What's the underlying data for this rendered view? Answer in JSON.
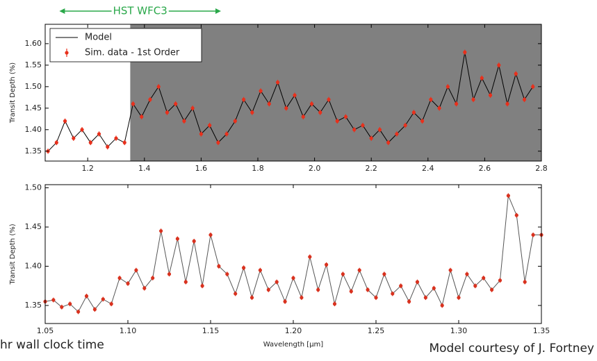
{
  "chart_data": [
    {
      "type": "line",
      "ylabel": "Transit Depth (%)",
      "annotation": {
        "text": "HST WFC3",
        "x_range": [
          1.1,
          1.67
        ],
        "color": "#2aa84a"
      },
      "shade": {
        "x_range": [
          1.35,
          2.8
        ],
        "color": "#808080"
      },
      "legend": "upper left",
      "x": [
        1.06,
        1.09,
        1.12,
        1.15,
        1.18,
        1.21,
        1.24,
        1.27,
        1.3,
        1.33,
        1.36,
        1.39,
        1.42,
        1.45,
        1.48,
        1.51,
        1.54,
        1.57,
        1.6,
        1.63,
        1.66,
        1.69,
        1.72,
        1.75,
        1.78,
        1.81,
        1.84,
        1.87,
        1.9,
        1.93,
        1.96,
        1.99,
        2.02,
        2.05,
        2.08,
        2.11,
        2.14,
        2.17,
        2.2,
        2.23,
        2.26,
        2.29,
        2.32,
        2.35,
        2.38,
        2.41,
        2.44,
        2.47,
        2.5,
        2.53,
        2.56,
        2.59,
        2.62,
        2.65,
        2.68,
        2.71,
        2.74,
        2.77
      ],
      "series": [
        {
          "name": "Model",
          "color": "#000000",
          "values": [
            1.35,
            1.37,
            1.42,
            1.38,
            1.4,
            1.37,
            1.39,
            1.36,
            1.38,
            1.37,
            1.46,
            1.43,
            1.47,
            1.5,
            1.44,
            1.46,
            1.42,
            1.45,
            1.39,
            1.41,
            1.37,
            1.39,
            1.42,
            1.47,
            1.44,
            1.49,
            1.46,
            1.51,
            1.45,
            1.48,
            1.43,
            1.46,
            1.44,
            1.47,
            1.42,
            1.43,
            1.4,
            1.41,
            1.38,
            1.4,
            1.37,
            1.39,
            1.41,
            1.44,
            1.42,
            1.47,
            1.45,
            1.5,
            1.46,
            1.58,
            1.47,
            1.52,
            1.48,
            1.55,
            1.46,
            1.53,
            1.47,
            1.5
          ]
        },
        {
          "name": "Sim. data - 1st Order",
          "color": "#e8301c",
          "error": 0.006,
          "values": [
            1.35,
            1.37,
            1.42,
            1.38,
            1.4,
            1.37,
            1.39,
            1.36,
            1.38,
            1.37,
            1.46,
            1.43,
            1.47,
            1.5,
            1.44,
            1.46,
            1.42,
            1.45,
            1.39,
            1.41,
            1.37,
            1.39,
            1.42,
            1.47,
            1.44,
            1.49,
            1.46,
            1.51,
            1.45,
            1.48,
            1.43,
            1.46,
            1.44,
            1.47,
            1.42,
            1.43,
            1.4,
            1.41,
            1.38,
            1.4,
            1.37,
            1.39,
            1.41,
            1.44,
            1.42,
            1.47,
            1.45,
            1.5,
            1.46,
            1.58,
            1.47,
            1.52,
            1.48,
            1.55,
            1.46,
            1.53,
            1.47,
            1.5
          ]
        }
      ],
      "xlim": [
        1.05,
        2.8
      ],
      "xticks": [
        1.2,
        1.4,
        1.6,
        1.8,
        {
          "value": 2,
          "label": "2.0"
        },
        2.2,
        2.4,
        2.6,
        2.8
      ],
      "ylim": [
        1.327,
        1.645
      ],
      "yticks": [
        1.35,
        {
          "value": 1.4,
          "label": "1.40"
        },
        1.45,
        {
          "value": 1.5,
          "label": "1.50"
        },
        1.55,
        {
          "value": 1.6,
          "label": "1.60"
        }
      ]
    },
    {
      "type": "line",
      "ylabel": "Transit Depth (%)",
      "xlabel": "Wavelength [μm]",
      "line_color": "#555555",
      "marker_color": "#d9321f",
      "error": 0.003,
      "x": [
        1.05,
        1.055,
        1.06,
        1.065,
        1.07,
        1.075,
        1.08,
        1.085,
        1.09,
        1.095,
        1.1,
        1.105,
        1.11,
        1.115,
        1.12,
        1.125,
        1.13,
        1.135,
        1.14,
        1.145,
        1.15,
        1.155,
        1.16,
        1.165,
        1.17,
        1.175,
        1.18,
        1.185,
        1.19,
        1.195,
        1.2,
        1.205,
        1.21,
        1.215,
        1.22,
        1.225,
        1.23,
        1.235,
        1.24,
        1.245,
        1.25,
        1.255,
        1.26,
        1.265,
        1.27,
        1.275,
        1.28,
        1.285,
        1.29,
        1.295,
        1.3,
        1.305,
        1.31,
        1.315,
        1.32,
        1.325,
        1.33,
        1.335,
        1.34,
        1.345,
        1.35
      ],
      "values": [
        1.355,
        1.357,
        1.348,
        1.352,
        1.342,
        1.362,
        1.345,
        1.358,
        1.352,
        1.385,
        1.378,
        1.395,
        1.372,
        1.385,
        1.445,
        1.39,
        1.435,
        1.38,
        1.432,
        1.375,
        1.44,
        1.4,
        1.39,
        1.365,
        1.398,
        1.36,
        1.395,
        1.37,
        1.38,
        1.355,
        1.385,
        1.36,
        1.412,
        1.37,
        1.402,
        1.352,
        1.39,
        1.368,
        1.395,
        1.37,
        1.36,
        1.39,
        1.365,
        1.375,
        1.355,
        1.38,
        1.36,
        1.372,
        1.35,
        1.395,
        1.36,
        1.39,
        1.375,
        1.385,
        1.37,
        1.382,
        1.49,
        1.465,
        1.38,
        1.44,
        1.44
      ],
      "xlim": [
        1.05,
        1.35
      ],
      "xticks": [
        1.05,
        {
          "value": 1.1,
          "label": "1.10"
        },
        1.15,
        {
          "value": 1.2,
          "label": "1.20"
        },
        1.25,
        {
          "value": 1.3,
          "label": "1.30"
        },
        1.35
      ],
      "ylim": [
        1.327,
        1.504
      ],
      "yticks": [
        1.35,
        {
          "value": 1.4,
          "label": "1.40"
        },
        1.45,
        {
          "value": 1.5,
          "label": "1.50"
        }
      ]
    }
  ],
  "footer": {
    "left": "hr wall clock time",
    "right": "Model courtesy of J. Fortney"
  }
}
